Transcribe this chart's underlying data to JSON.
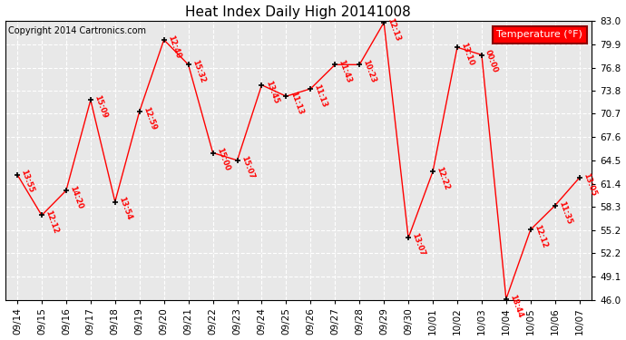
{
  "title": "Heat Index Daily High 20141008",
  "copyright": "Copyright 2014 Cartronics.com",
  "legend_label": "Temperature (°F)",
  "background_color": "#ffffff",
  "plot_background": "#e8e8e8",
  "line_color": "red",
  "marker_color": "black",
  "label_color": "red",
  "ylim": [
    46.0,
    83.0
  ],
  "yticks": [
    46.0,
    49.1,
    52.2,
    55.2,
    58.3,
    61.4,
    64.5,
    67.6,
    70.7,
    73.8,
    76.8,
    79.9,
    83.0
  ],
  "dates": [
    "09/14",
    "09/15",
    "09/16",
    "09/17",
    "09/18",
    "09/19",
    "09/20",
    "09/21",
    "09/22",
    "09/23",
    "09/24",
    "09/25",
    "09/26",
    "09/27",
    "09/28",
    "09/29",
    "09/30",
    "10/01",
    "10/02",
    "10/03",
    "10/04",
    "10/05",
    "10/06",
    "10/07"
  ],
  "values": [
    62.6,
    57.2,
    60.5,
    72.5,
    59.0,
    71.0,
    80.5,
    77.2,
    65.5,
    64.5,
    74.5,
    73.0,
    74.0,
    77.2,
    77.2,
    82.8,
    54.2,
    63.0,
    79.5,
    78.5,
    46.1,
    55.3,
    58.5,
    62.2
  ],
  "time_labels": [
    "13:55",
    "12:12",
    "14:20",
    "15:09",
    "13:54",
    "12:59",
    "12:40",
    "15:32",
    "15:00",
    "15:07",
    "13:45",
    "11:13",
    "11:13",
    "11:43",
    "10:23",
    "12:13",
    "13:07",
    "12:22",
    "13:10",
    "00:00",
    "18:44",
    "12:12",
    "11:35",
    "13:05"
  ]
}
